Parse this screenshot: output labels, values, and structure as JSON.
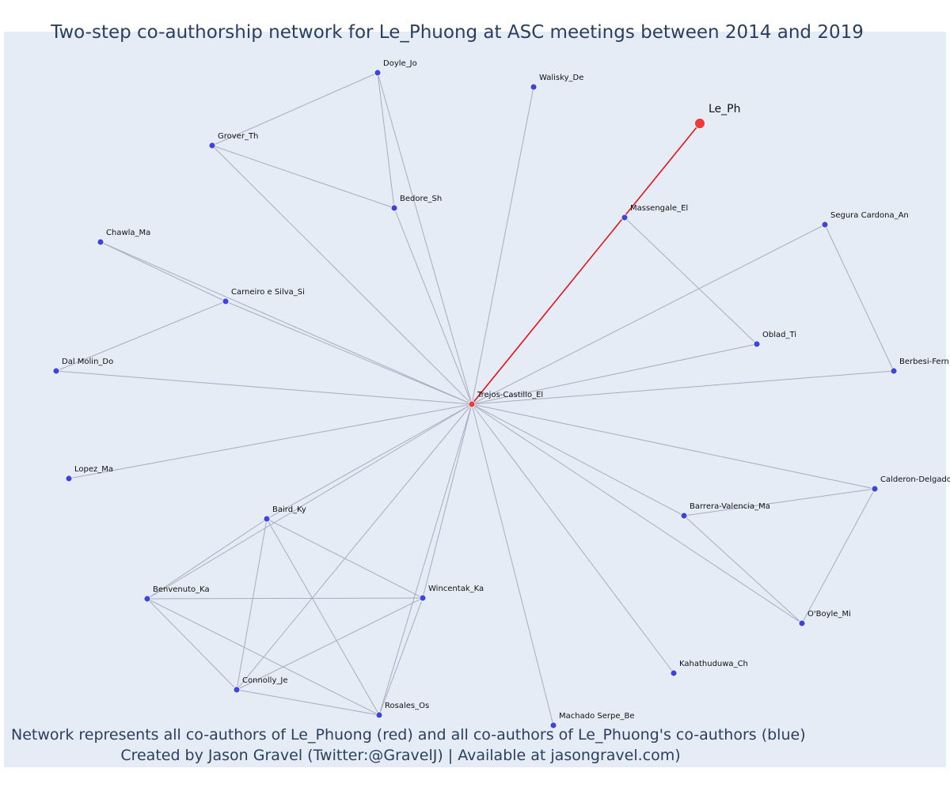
{
  "title": "Two-step co-authorship network for Le_Phuong at ASC meetings between 2014 and 2019",
  "footer": {
    "line1": "Network represents all co-authors of Le_Phuong (red) and all co-authors of Le_Phuong's co-authors (blue)",
    "line2": "Created by Jason Gravel (Twitter:@GravelJ) | Available at jasongravel.com)"
  },
  "colors": {
    "background": "#e5ecf6",
    "focus_node": "#ef3b3b",
    "coauthor_node": "#3f44e0",
    "edge": "#a8acbf",
    "focus_edge": "#e0141c"
  },
  "nodes": [
    {
      "id": "Le_Ph",
      "label": "Le_Ph",
      "role": "focus"
    },
    {
      "id": "Trejos-Castillo_El",
      "label": "Trejos-Castillo_El",
      "role": "coauthor"
    },
    {
      "id": "Massengale_El",
      "label": "Massengale_El",
      "role": "second"
    },
    {
      "id": "Doyle_Jo",
      "label": "Doyle_Jo",
      "role": "second"
    },
    {
      "id": "Walisky_De",
      "label": "Walisky_De",
      "role": "second"
    },
    {
      "id": "Grover_Th",
      "label": "Grover_Th",
      "role": "second"
    },
    {
      "id": "Bedore_Sh",
      "label": "Bedore_Sh",
      "role": "second"
    },
    {
      "id": "Chawla_Ma",
      "label": "Chawla_Ma",
      "role": "second"
    },
    {
      "id": "Segura Cardona_An",
      "label": "Segura Cardona_An",
      "role": "second"
    },
    {
      "id": "Carneiro e Silva_Si",
      "label": "Carneiro e Silva_Si",
      "role": "second"
    },
    {
      "id": "Oblad_Ti",
      "label": "Oblad_Ti",
      "role": "second"
    },
    {
      "id": "Dal Molin_Do",
      "label": "Dal Molin_Do",
      "role": "second"
    },
    {
      "id": "Berbesi-Fern",
      "label": "Berbesi-Fern",
      "role": "second"
    },
    {
      "id": "Lopez_Ma",
      "label": "Lopez_Ma",
      "role": "second"
    },
    {
      "id": "Calderon-Delgado",
      "label": "Calderon-Delgado",
      "role": "second"
    },
    {
      "id": "Baird_Ky",
      "label": "Baird_Ky",
      "role": "second"
    },
    {
      "id": "Barrera-Valencia_Ma",
      "label": "Barrera-Valencia_Ma",
      "role": "second"
    },
    {
      "id": "Benvenuto_Ka",
      "label": "Benvenuto_Ka",
      "role": "second"
    },
    {
      "id": "Wincentak_Ka",
      "label": "Wincentak_Ka",
      "role": "second"
    },
    {
      "id": "O'Boyle_Mi",
      "label": "O'Boyle_Mi",
      "role": "second"
    },
    {
      "id": "Kahathuduwa_Ch",
      "label": "Kahathuduwa_Ch",
      "role": "second"
    },
    {
      "id": "Connolly_Je",
      "label": "Connolly_Je",
      "role": "second"
    },
    {
      "id": "Rosales_Os",
      "label": "Rosales_Os",
      "role": "second"
    },
    {
      "id": "Machado Serpe_Be",
      "label": "Machado Serpe_Be",
      "role": "second"
    }
  ],
  "edges": [
    {
      "from": "Le_Ph",
      "to": "Trejos-Castillo_El",
      "focus": true
    },
    {
      "from": "Trejos-Castillo_El",
      "to": "Doyle_Jo"
    },
    {
      "from": "Trejos-Castillo_El",
      "to": "Walisky_De"
    },
    {
      "from": "Trejos-Castillo_El",
      "to": "Grover_Th"
    },
    {
      "from": "Trejos-Castillo_El",
      "to": "Bedore_Sh"
    },
    {
      "from": "Trejos-Castillo_El",
      "to": "Chawla_Ma"
    },
    {
      "from": "Trejos-Castillo_El",
      "to": "Carneiro e Silva_Si"
    },
    {
      "from": "Trejos-Castillo_El",
      "to": "Dal Molin_Do"
    },
    {
      "from": "Trejos-Castillo_El",
      "to": "Lopez_Ma"
    },
    {
      "from": "Trejos-Castillo_El",
      "to": "Segura Cardona_An"
    },
    {
      "from": "Trejos-Castillo_El",
      "to": "Oblad_Ti"
    },
    {
      "from": "Trejos-Castillo_El",
      "to": "Berbesi-Fern"
    },
    {
      "from": "Trejos-Castillo_El",
      "to": "Calderon-Delgado"
    },
    {
      "from": "Trejos-Castillo_El",
      "to": "Barrera-Valencia_Ma"
    },
    {
      "from": "Trejos-Castillo_El",
      "to": "O'Boyle_Mi"
    },
    {
      "from": "Trejos-Castillo_El",
      "to": "Kahathuduwa_Ch"
    },
    {
      "from": "Trejos-Castillo_El",
      "to": "Machado Serpe_Be"
    },
    {
      "from": "Trejos-Castillo_El",
      "to": "Rosales_Os"
    },
    {
      "from": "Trejos-Castillo_El",
      "to": "Wincentak_Ka"
    },
    {
      "from": "Trejos-Castillo_El",
      "to": "Connolly_Je"
    },
    {
      "from": "Trejos-Castillo_El",
      "to": "Baird_Ky"
    },
    {
      "from": "Trejos-Castillo_El",
      "to": "Benvenuto_Ka"
    },
    {
      "from": "Massengale_El",
      "to": "Oblad_Ti"
    },
    {
      "from": "Doyle_Jo",
      "to": "Grover_Th"
    },
    {
      "from": "Doyle_Jo",
      "to": "Bedore_Sh"
    },
    {
      "from": "Grover_Th",
      "to": "Bedore_Sh"
    },
    {
      "from": "Chawla_Ma",
      "to": "Carneiro e Silva_Si"
    },
    {
      "from": "Carneiro e Silva_Si",
      "to": "Dal Molin_Do"
    },
    {
      "from": "Segura Cardona_An",
      "to": "Berbesi-Fern"
    },
    {
      "from": "Calderon-Delgado",
      "to": "Barrera-Valencia_Ma"
    },
    {
      "from": "Calderon-Delgado",
      "to": "O'Boyle_Mi"
    },
    {
      "from": "Barrera-Valencia_Ma",
      "to": "O'Boyle_Mi"
    },
    {
      "from": "Baird_Ky",
      "to": "Benvenuto_Ka"
    },
    {
      "from": "Baird_Ky",
      "to": "Wincentak_Ka"
    },
    {
      "from": "Baird_Ky",
      "to": "Connolly_Je"
    },
    {
      "from": "Baird_Ky",
      "to": "Rosales_Os"
    },
    {
      "from": "Benvenuto_Ka",
      "to": "Wincentak_Ka"
    },
    {
      "from": "Benvenuto_Ka",
      "to": "Connolly_Je"
    },
    {
      "from": "Benvenuto_Ka",
      "to": "Rosales_Os"
    },
    {
      "from": "Wincentak_Ka",
      "to": "Connolly_Je"
    },
    {
      "from": "Wincentak_Ka",
      "to": "Rosales_Os"
    },
    {
      "from": "Connolly_Je",
      "to": "Rosales_Os"
    }
  ]
}
